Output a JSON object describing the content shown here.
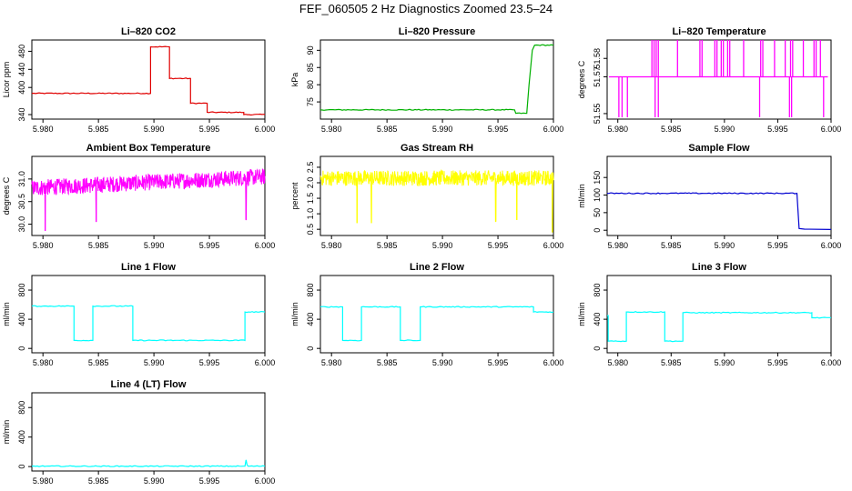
{
  "title": "FEF_060505  2 Hz Diagnostics Zoomed 23.5–24",
  "chart_data": [
    {
      "type": "line",
      "title": "Li–820 CO2",
      "ylabel": "Licor ppm",
      "color": "#e00000",
      "xlim": [
        5.979,
        6.0
      ],
      "ylim": [
        330,
        505
      ],
      "xticks": [
        "5.980",
        "5.985",
        "5.990",
        "5.995",
        "6.000"
      ],
      "yticks": [
        {
          "v": 340,
          "l": "340"
        },
        {
          "v": 400,
          "l": "400"
        },
        {
          "v": 440,
          "l": "440"
        },
        {
          "v": 480,
          "l": "480"
        }
      ],
      "series": [
        {
          "x": [
            5.979,
            5.9897,
            5.9897,
            5.9914,
            5.9914,
            5.9933,
            5.9933,
            5.9948,
            5.9948,
            5.9981,
            5.9981,
            6.0
          ],
          "y": [
            387,
            387,
            490,
            490,
            420,
            420,
            365,
            365,
            345,
            345,
            340,
            340
          ]
        }
      ]
    },
    {
      "type": "line",
      "title": "Li–820 Pressure",
      "ylabel": "kPa",
      "color": "#00b000",
      "xlim": [
        5.979,
        6.0
      ],
      "ylim": [
        70,
        93
      ],
      "xticks": [
        "5.980",
        "5.985",
        "5.990",
        "5.995",
        "6.000"
      ],
      "yticks": [
        {
          "v": 75,
          "l": "75"
        },
        {
          "v": 80,
          "l": "80"
        },
        {
          "v": 85,
          "l": "85"
        },
        {
          "v": 90,
          "l": "90"
        }
      ],
      "series": [
        {
          "x": [
            5.979,
            5.9965,
            5.9966,
            5.9976,
            5.9978,
            5.9981,
            5.9983,
            6.0
          ],
          "y": [
            72.7,
            72.7,
            71.7,
            71.7,
            80,
            90,
            91.5,
            91.5
          ]
        }
      ]
    },
    {
      "type": "line",
      "title": "Li–820 Temperature",
      "ylabel": "degrees C",
      "color": "#ff00ff",
      "xlim": [
        5.979,
        6.0
      ],
      "ylim": [
        51.547,
        51.59
      ],
      "xticks": [
        "5.980",
        "5.985",
        "5.990",
        "5.995",
        "6.000"
      ],
      "yticks": [
        {
          "v": 51.55,
          "l": "51.55"
        },
        {
          "v": 51.57,
          "l": "51.57"
        },
        {
          "v": 51.58,
          "l": "51.58"
        }
      ],
      "baseline": 51.57,
      "spikes_up": [
        5.9832,
        5.9834,
        5.9836,
        5.9838,
        5.9856,
        5.9877,
        5.9879,
        5.9891,
        5.9893,
        5.9897,
        5.9899,
        5.9903,
        5.9905,
        5.9918,
        5.9934,
        5.9936,
        5.9947,
        5.9957,
        5.9962,
        5.9964,
        5.9974,
        5.9984,
        5.9986,
        5.999
      ],
      "spikes_down": [
        5.9801,
        5.9804,
        5.9809,
        5.9835,
        5.9838,
        5.9933,
        5.9961,
        5.9963,
        5.9993
      ],
      "up_value": 51.59,
      "down_value": 51.548
    },
    {
      "type": "line",
      "title": "Ambient Box Temperature",
      "ylabel": "degrees C",
      "color": "#ff00ff",
      "xlim": [
        5.979,
        6.0
      ],
      "ylim": [
        29.75,
        31.5
      ],
      "xticks": [
        "5.980",
        "5.985",
        "5.990",
        "5.995",
        "6.000"
      ],
      "yticks": [
        {
          "v": 30.0,
          "l": "30.0"
        },
        {
          "v": 30.5,
          "l": "30.5"
        },
        {
          "v": 31.0,
          "l": "31.0"
        }
      ],
      "noise": {
        "start": 30.8,
        "end": 31.05,
        "amp": 0.18,
        "dips": [
          [
            5.9802,
            29.85
          ],
          [
            5.9848,
            30.05
          ],
          [
            5.9983,
            30.1
          ]
        ]
      }
    },
    {
      "type": "line",
      "title": "Gas Stream RH",
      "ylabel": "percent",
      "color": "#ffff00",
      "xlim": [
        5.979,
        6.0
      ],
      "ylim": [
        0.3,
        2.85
      ],
      "xticks": [
        "5.980",
        "5.985",
        "5.990",
        "5.995",
        "6.000"
      ],
      "yticks": [
        {
          "v": 0.5,
          "l": "0.5"
        },
        {
          "v": 1.0,
          "l": "1.0"
        },
        {
          "v": 1.5,
          "l": "1.5"
        },
        {
          "v": 2.0,
          "l": "2.0"
        },
        {
          "v": 2.5,
          "l": "2.5"
        }
      ],
      "noise": {
        "start": 2.15,
        "end": 2.15,
        "amp": 0.25,
        "dips": [
          [
            5.9823,
            0.7
          ],
          [
            5.9836,
            0.7
          ],
          [
            5.9948,
            0.75
          ],
          [
            5.9967,
            0.8
          ],
          [
            5.9999,
            0.4
          ]
        ]
      }
    },
    {
      "type": "line",
      "title": "Sample Flow",
      "ylabel": "ml/min",
      "color": "#0000d0",
      "xlim": [
        5.979,
        6.0
      ],
      "ylim": [
        -15,
        210
      ],
      "xticks": [
        "5.980",
        "5.985",
        "5.990",
        "5.995",
        "6.000"
      ],
      "yticks": [
        {
          "v": 0,
          "l": "0"
        },
        {
          "v": 50,
          "l": "50"
        },
        {
          "v": 100,
          "l": "100"
        },
        {
          "v": 150,
          "l": "150"
        }
      ],
      "series": [
        {
          "x": [
            5.979,
            5.9968,
            5.997,
            5.9975,
            6.0
          ],
          "y": [
            105,
            105,
            5,
            3,
            2
          ]
        }
      ]
    },
    {
      "type": "line",
      "title": "Line 1 Flow",
      "ylabel": "ml/min",
      "color": "#00ffff",
      "xlim": [
        5.979,
        6.0
      ],
      "ylim": [
        -60,
        1000
      ],
      "xticks": [
        "5.980",
        "5.985",
        "5.990",
        "5.995",
        "6.000"
      ],
      "yticks": [
        {
          "v": 0,
          "l": "0"
        },
        {
          "v": 400,
          "l": "400"
        },
        {
          "v": 800,
          "l": "800"
        }
      ],
      "series": [
        {
          "x": [
            5.979,
            5.9828,
            5.9828,
            5.9845,
            5.9845,
            5.9881,
            5.9881,
            5.9982,
            5.9982,
            6.0
          ],
          "y": [
            580,
            580,
            110,
            110,
            580,
            580,
            110,
            110,
            500,
            500
          ]
        }
      ]
    },
    {
      "type": "line",
      "title": "Line 2 Flow",
      "ylabel": "ml/min",
      "color": "#00ffff",
      "xlim": [
        5.979,
        6.0
      ],
      "ylim": [
        -60,
        1000
      ],
      "xticks": [
        "5.980",
        "5.985",
        "5.990",
        "5.995",
        "6.000"
      ],
      "yticks": [
        {
          "v": 0,
          "l": "0"
        },
        {
          "v": 400,
          "l": "400"
        },
        {
          "v": 800,
          "l": "800"
        }
      ],
      "series": [
        {
          "x": [
            5.979,
            5.981,
            5.981,
            5.9827,
            5.9827,
            5.9862,
            5.9862,
            5.988,
            5.988,
            5.9982,
            5.9982,
            6.0
          ],
          "y": [
            570,
            570,
            110,
            110,
            570,
            570,
            110,
            110,
            570,
            570,
            500,
            500
          ]
        }
      ]
    },
    {
      "type": "line",
      "title": "Line 3 Flow",
      "ylabel": "ml/min",
      "color": "#00ffff",
      "xlim": [
        5.979,
        6.0
      ],
      "ylim": [
        -60,
        1000
      ],
      "xticks": [
        "5.980",
        "5.985",
        "5.990",
        "5.995",
        "6.000"
      ],
      "yticks": [
        {
          "v": 0,
          "l": "0"
        },
        {
          "v": 400,
          "l": "400"
        },
        {
          "v": 800,
          "l": "800"
        }
      ],
      "series": [
        {
          "x": [
            5.979,
            5.9791,
            5.9791,
            5.9808,
            5.9808,
            5.9844,
            5.9844,
            5.9861,
            5.9861,
            5.9982,
            5.9982,
            6.0
          ],
          "y": [
            450,
            450,
            100,
            100,
            500,
            500,
            100,
            100,
            490,
            490,
            420,
            420
          ]
        }
      ]
    },
    {
      "type": "line",
      "title": "Line 4 (LT) Flow",
      "ylabel": "ml/min",
      "color": "#00ffff",
      "xlim": [
        5.979,
        6.0
      ],
      "ylim": [
        -60,
        1000
      ],
      "xticks": [
        "5.980",
        "5.985",
        "5.990",
        "5.995",
        "6.000"
      ],
      "yticks": [
        {
          "v": 0,
          "l": "0"
        },
        {
          "v": 400,
          "l": "400"
        },
        {
          "v": 800,
          "l": "800"
        }
      ],
      "series": [
        {
          "x": [
            5.979,
            5.9982,
            5.9983,
            5.9984,
            5.9985,
            6.0
          ],
          "y": [
            5,
            5,
            90,
            20,
            5,
            5
          ]
        }
      ]
    }
  ]
}
